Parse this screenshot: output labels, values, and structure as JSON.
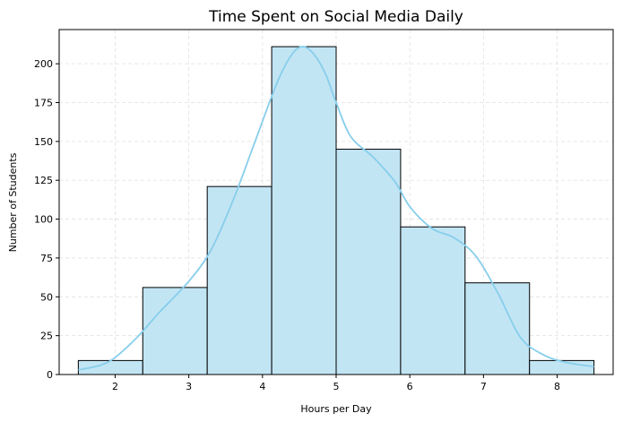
{
  "chart_data": {
    "type": "bar",
    "subtype": "histogram-with-kde",
    "title": "Time Spent on Social Media Daily",
    "xlabel": "Hours per Day",
    "ylabel": "Number of Students",
    "xlim": [
      1.24,
      8.76
    ],
    "ylim": [
      0,
      222
    ],
    "x_ticks": [
      2,
      3,
      4,
      5,
      6,
      7,
      8
    ],
    "y_ticks": [
      0,
      25,
      50,
      75,
      100,
      125,
      150,
      175,
      200
    ],
    "grid": true,
    "bins": [
      {
        "start": 1.5,
        "end": 2.375,
        "count": 9
      },
      {
        "start": 2.375,
        "end": 3.25,
        "count": 56
      },
      {
        "start": 3.25,
        "end": 4.125,
        "count": 121
      },
      {
        "start": 4.125,
        "end": 5.0,
        "count": 211
      },
      {
        "start": 5.0,
        "end": 5.875,
        "count": 145
      },
      {
        "start": 5.875,
        "end": 6.75,
        "count": 95
      },
      {
        "start": 6.75,
        "end": 7.625,
        "count": 59
      },
      {
        "start": 7.625,
        "end": 8.5,
        "count": 9
      }
    ],
    "kde": {
      "x": [
        1.5,
        1.8,
        2.0,
        2.3,
        2.6,
        3.0,
        3.3,
        3.6,
        3.9,
        4.2,
        4.4,
        4.55,
        4.7,
        4.85,
        5.0,
        5.2,
        5.5,
        5.8,
        6.0,
        6.3,
        6.6,
        6.9,
        7.2,
        7.5,
        7.8,
        8.1,
        8.5
      ],
      "y": [
        3,
        6,
        11,
        24,
        40,
        60,
        80,
        112,
        150,
        188,
        206,
        211,
        206,
        194,
        175,
        153,
        140,
        124,
        108,
        94,
        88,
        76,
        52,
        24,
        13,
        8,
        5
      ]
    },
    "colors": {
      "bar_fill": "#c2e5f4",
      "bar_edge": "#000000",
      "kde_line": "#87ceeb",
      "grid": "#e0e0e0"
    }
  }
}
